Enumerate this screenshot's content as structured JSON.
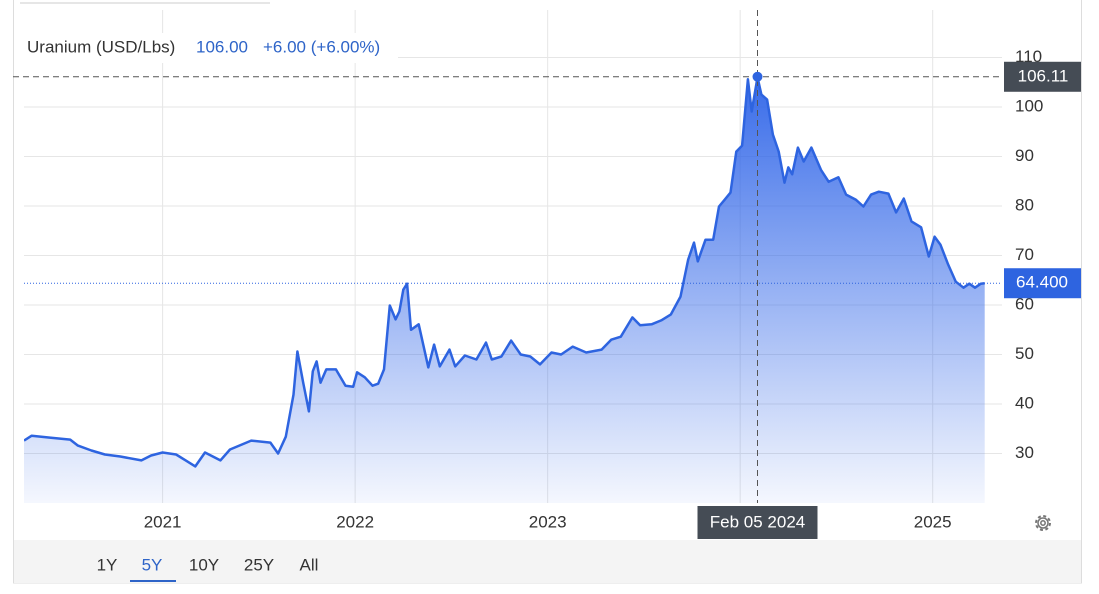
{
  "chart_data": {
    "type": "area",
    "title": "Uranium (USD/Lbs)",
    "price": "106.00",
    "change": "+6.00 (+6.00%)",
    "color": "#2e64e0",
    "grid": true,
    "xlim": [
      2020.28,
      2025.36
    ],
    "ylim": [
      20,
      119.6
    ],
    "xticks": [
      2021,
      2022,
      2023,
      2024,
      2025
    ],
    "yticks": [
      30,
      40,
      50,
      60,
      70,
      80,
      90,
      100,
      110
    ],
    "hidden_xticks": [
      3
    ],
    "x": [
      2020.28,
      2020.32,
      2020.37,
      2020.42,
      2020.52,
      2020.56,
      2020.63,
      2020.7,
      2020.78,
      2020.89,
      2020.94,
      2021.0,
      2021.07,
      2021.12,
      2021.17,
      2021.22,
      2021.3,
      2021.35,
      2021.46,
      2021.56,
      2021.6,
      2021.64,
      2021.68,
      2021.7,
      2021.73,
      2021.76,
      2021.78,
      2021.8,
      2021.82,
      2021.85,
      2021.9,
      2021.95,
      2021.99,
      2022.01,
      2022.05,
      2022.09,
      2022.12,
      2022.15,
      2022.18,
      2022.21,
      2022.23,
      2022.25,
      2022.27,
      2022.29,
      2022.33,
      2022.38,
      2022.41,
      2022.44,
      2022.49,
      2022.52,
      2022.57,
      2022.63,
      2022.68,
      2022.71,
      2022.76,
      2022.81,
      2022.86,
      2022.91,
      2022.96,
      2023.02,
      2023.07,
      2023.13,
      2023.2,
      2023.28,
      2023.33,
      2023.38,
      2023.44,
      2023.48,
      2023.54,
      2023.59,
      2023.64,
      2023.69,
      2023.73,
      2023.76,
      2023.78,
      2023.82,
      2023.86,
      2023.89,
      2023.92,
      2023.95,
      2023.98,
      2024.01,
      2024.04,
      2024.06,
      2024.09,
      2024.11,
      2024.14,
      2024.17,
      2024.2,
      2024.23,
      2024.25,
      2024.27,
      2024.3,
      2024.33,
      2024.37,
      2024.42,
      2024.46,
      2024.51,
      2024.55,
      2024.6,
      2024.64,
      2024.68,
      2024.72,
      2024.77,
      2024.81,
      2024.85,
      2024.89,
      2024.94,
      2024.98,
      2025.01,
      2025.04,
      2025.08,
      2025.12,
      2025.16,
      2025.19,
      2025.22,
      2025.25,
      2025.27
    ],
    "values": [
      32.6,
      33.6,
      33.4,
      33.2,
      32.8,
      31.6,
      30.6,
      29.8,
      29.4,
      28.6,
      29.6,
      30.2,
      29.8,
      28.6,
      27.4,
      30.2,
      28.6,
      30.8,
      32.6,
      32.2,
      30,
      33.4,
      41.9,
      50.6,
      44.3,
      38.5,
      46.6,
      48.6,
      44.3,
      47,
      47,
      43.7,
      43.5,
      46.4,
      45.4,
      43.7,
      44.1,
      47,
      59.9,
      57.1,
      58.7,
      63.1,
      64.3,
      55,
      56.1,
      47.4,
      52,
      47.6,
      51,
      47.6,
      49.8,
      49,
      52.4,
      49,
      49.6,
      52.8,
      50,
      49.6,
      48,
      50.4,
      50,
      51.6,
      50.4,
      51,
      53,
      53.6,
      57.5,
      55.9,
      56.1,
      56.9,
      58.1,
      61.7,
      69.2,
      72.6,
      68.8,
      73.2,
      73.2,
      79.9,
      81.3,
      82.7,
      91,
      92.2,
      105.6,
      99.1,
      106,
      102.5,
      101.5,
      94.4,
      91,
      84.7,
      87.8,
      86.4,
      91.8,
      89,
      91.8,
      87.3,
      84.9,
      85.8,
      82.3,
      81.3,
      79.9,
      82.3,
      82.9,
      82.5,
      78.7,
      81.5,
      76.9,
      75.7,
      69.8,
      73.8,
      72.2,
      68.2,
      64.7,
      63.5,
      64.3,
      63.5,
      64.3,
      64.4
    ],
    "crosshair": {
      "x": 2024.09,
      "x_label": "Feb 05 2024",
      "y": 106.11
    },
    "last_value": {
      "value": 64.4,
      "label": "64.400"
    },
    "range_buttons": [
      "1Y",
      "5Y",
      "10Y",
      "25Y",
      "All"
    ],
    "selected_range": 1
  }
}
